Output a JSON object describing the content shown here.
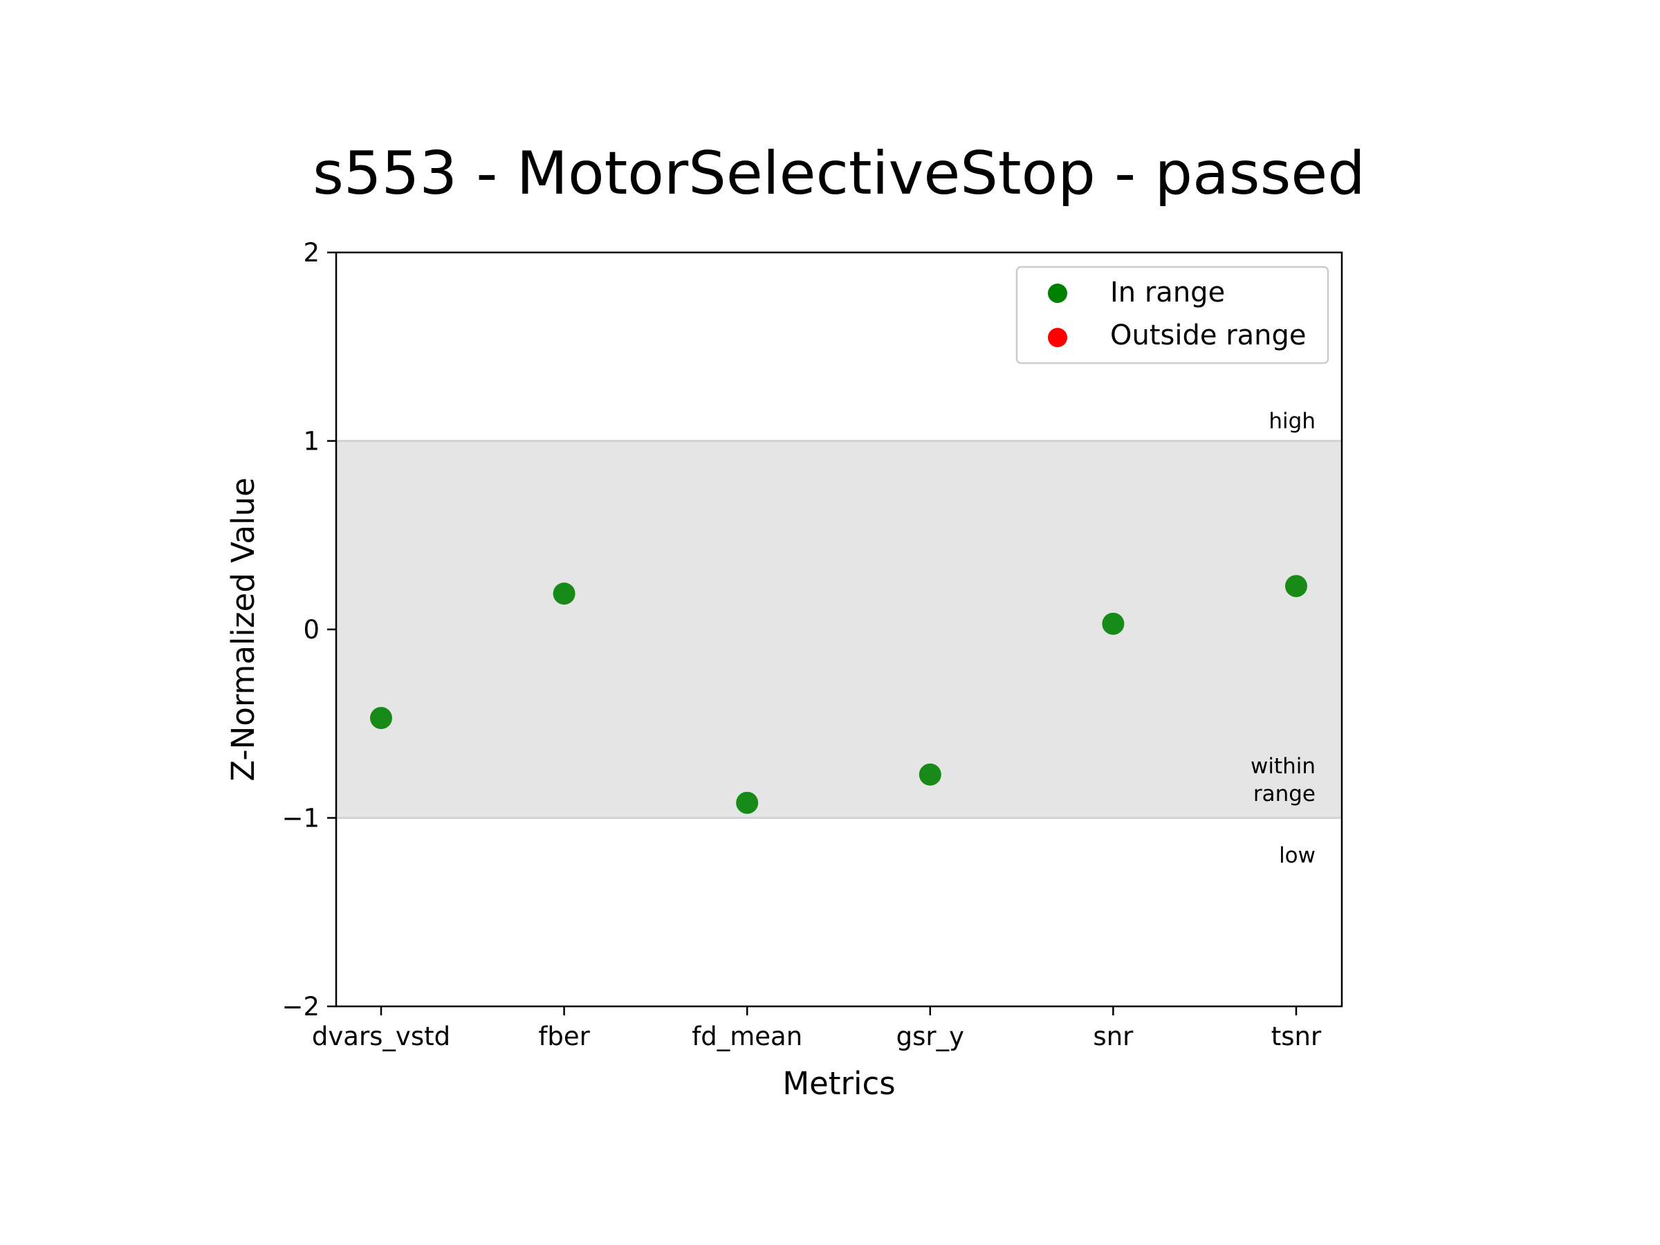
{
  "chart_data": {
    "type": "scatter",
    "title": "s553 - MotorSelectiveStop - passed",
    "xlabel": "Metrics",
    "ylabel": "Z-Normalized Value",
    "categories": [
      "dvars_vstd",
      "fber",
      "fd_mean",
      "gsr_y",
      "snr",
      "tsnr"
    ],
    "series": [
      {
        "name": "In range",
        "color": "#008000",
        "x": [
          "dvars_vstd",
          "fber",
          "fd_mean",
          "gsr_y",
          "snr",
          "tsnr"
        ],
        "y": [
          -0.47,
          0.19,
          -0.92,
          -0.77,
          0.03,
          0.23
        ]
      },
      {
        "name": "Outside range",
        "color": "#ff0000",
        "x": [],
        "y": []
      }
    ],
    "ylim": [
      -2,
      2
    ],
    "yticks": [
      -2,
      -1,
      0,
      1,
      2
    ],
    "ytick_labels": [
      "−2",
      "−1",
      "0",
      "1",
      "2"
    ],
    "band": {
      "from": -1,
      "to": 1,
      "color": "#e5e5e5",
      "line_color": "#d3d3d3"
    },
    "band_labels": {
      "high": "high",
      "within": [
        "within",
        "range"
      ],
      "low": "low"
    },
    "legend": {
      "position": "top-right"
    },
    "grid": false
  }
}
